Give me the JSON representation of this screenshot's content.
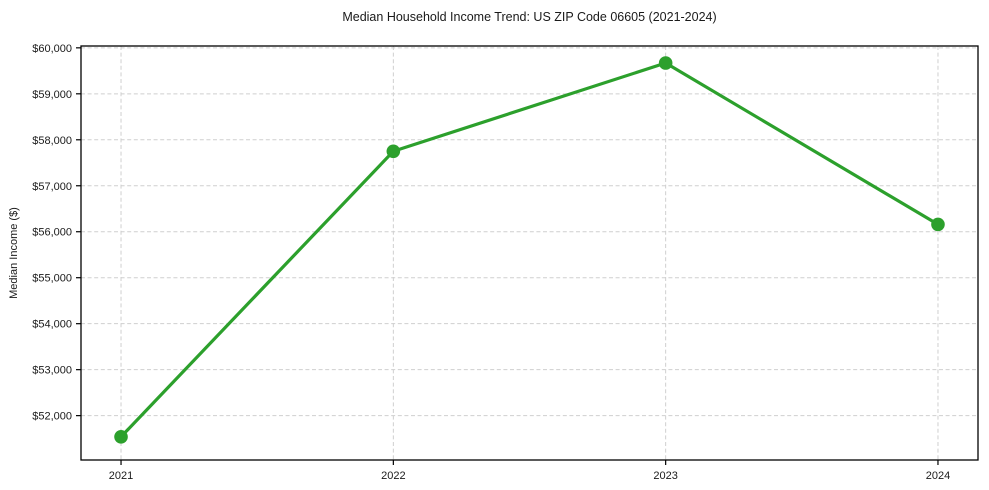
{
  "chart_data": {
    "type": "line",
    "title": "Median Household Income Trend: US ZIP Code 06605 (2021-2024)",
    "xlabel": "",
    "ylabel": "Median Income ($)",
    "categories": [
      "2021",
      "2022",
      "2023",
      "2024"
    ],
    "series": [
      {
        "values": [
          51540,
          57750,
          59670,
          56160
        ],
        "color": "#2ca02c",
        "marker": "circle",
        "line_width": 3.2,
        "marker_radius": 6.8
      }
    ],
    "ylim": [
      51035,
      60040
    ],
    "yticks": [
      {
        "value": 52000,
        "label": "$52,000"
      },
      {
        "value": 53000,
        "label": "$53,000"
      },
      {
        "value": 54000,
        "label": "$54,000"
      },
      {
        "value": 55000,
        "label": "$55,000"
      },
      {
        "value": 56000,
        "label": "$56,000"
      },
      {
        "value": 57000,
        "label": "$57,000"
      },
      {
        "value": 58000,
        "label": "$58,000"
      },
      {
        "value": 59000,
        "label": "$59,000"
      },
      {
        "value": 60000,
        "label": "$60,000"
      }
    ],
    "grid": {
      "horizontal": true,
      "vertical": true,
      "style": "dashed",
      "color": "#cfcfcf"
    },
    "legend_position": "none",
    "axis_color": "#000000",
    "text_color": "#1a1a1a",
    "background_color": "#ffffff"
  }
}
